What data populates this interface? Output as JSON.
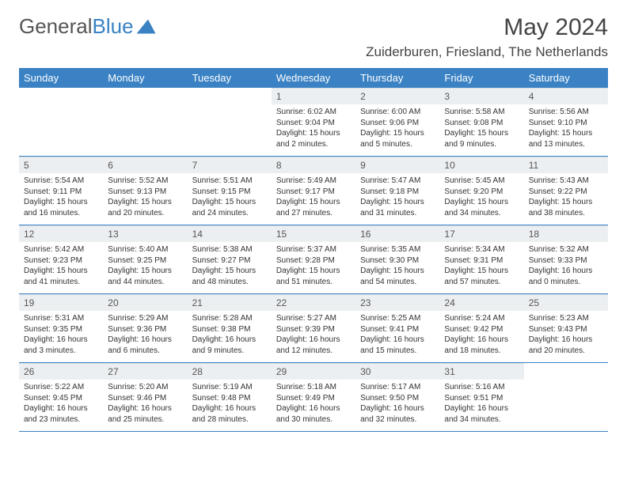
{
  "brand": {
    "part1": "General",
    "part2": "Blue"
  },
  "title": "May 2024",
  "location": "Zuiderburen, Friesland, The Netherlands",
  "dayNames": [
    "Sunday",
    "Monday",
    "Tuesday",
    "Wednesday",
    "Thursday",
    "Friday",
    "Saturday"
  ],
  "colors": {
    "accent": "#3a82c4",
    "headerText": "#ffffff",
    "dayNumBg": "#eceff1",
    "border": "#3a82c4",
    "text": "#333333"
  },
  "startOffset": 3,
  "days": [
    {
      "n": "1",
      "sr": "6:02 AM",
      "ss": "9:04 PM",
      "dl": "15 hours and 2 minutes."
    },
    {
      "n": "2",
      "sr": "6:00 AM",
      "ss": "9:06 PM",
      "dl": "15 hours and 5 minutes."
    },
    {
      "n": "3",
      "sr": "5:58 AM",
      "ss": "9:08 PM",
      "dl": "15 hours and 9 minutes."
    },
    {
      "n": "4",
      "sr": "5:56 AM",
      "ss": "9:10 PM",
      "dl": "15 hours and 13 minutes."
    },
    {
      "n": "5",
      "sr": "5:54 AM",
      "ss": "9:11 PM",
      "dl": "15 hours and 16 minutes."
    },
    {
      "n": "6",
      "sr": "5:52 AM",
      "ss": "9:13 PM",
      "dl": "15 hours and 20 minutes."
    },
    {
      "n": "7",
      "sr": "5:51 AM",
      "ss": "9:15 PM",
      "dl": "15 hours and 24 minutes."
    },
    {
      "n": "8",
      "sr": "5:49 AM",
      "ss": "9:17 PM",
      "dl": "15 hours and 27 minutes."
    },
    {
      "n": "9",
      "sr": "5:47 AM",
      "ss": "9:18 PM",
      "dl": "15 hours and 31 minutes."
    },
    {
      "n": "10",
      "sr": "5:45 AM",
      "ss": "9:20 PM",
      "dl": "15 hours and 34 minutes."
    },
    {
      "n": "11",
      "sr": "5:43 AM",
      "ss": "9:22 PM",
      "dl": "15 hours and 38 minutes."
    },
    {
      "n": "12",
      "sr": "5:42 AM",
      "ss": "9:23 PM",
      "dl": "15 hours and 41 minutes."
    },
    {
      "n": "13",
      "sr": "5:40 AM",
      "ss": "9:25 PM",
      "dl": "15 hours and 44 minutes."
    },
    {
      "n": "14",
      "sr": "5:38 AM",
      "ss": "9:27 PM",
      "dl": "15 hours and 48 minutes."
    },
    {
      "n": "15",
      "sr": "5:37 AM",
      "ss": "9:28 PM",
      "dl": "15 hours and 51 minutes."
    },
    {
      "n": "16",
      "sr": "5:35 AM",
      "ss": "9:30 PM",
      "dl": "15 hours and 54 minutes."
    },
    {
      "n": "17",
      "sr": "5:34 AM",
      "ss": "9:31 PM",
      "dl": "15 hours and 57 minutes."
    },
    {
      "n": "18",
      "sr": "5:32 AM",
      "ss": "9:33 PM",
      "dl": "16 hours and 0 minutes."
    },
    {
      "n": "19",
      "sr": "5:31 AM",
      "ss": "9:35 PM",
      "dl": "16 hours and 3 minutes."
    },
    {
      "n": "20",
      "sr": "5:29 AM",
      "ss": "9:36 PM",
      "dl": "16 hours and 6 minutes."
    },
    {
      "n": "21",
      "sr": "5:28 AM",
      "ss": "9:38 PM",
      "dl": "16 hours and 9 minutes."
    },
    {
      "n": "22",
      "sr": "5:27 AM",
      "ss": "9:39 PM",
      "dl": "16 hours and 12 minutes."
    },
    {
      "n": "23",
      "sr": "5:25 AM",
      "ss": "9:41 PM",
      "dl": "16 hours and 15 minutes."
    },
    {
      "n": "24",
      "sr": "5:24 AM",
      "ss": "9:42 PM",
      "dl": "16 hours and 18 minutes."
    },
    {
      "n": "25",
      "sr": "5:23 AM",
      "ss": "9:43 PM",
      "dl": "16 hours and 20 minutes."
    },
    {
      "n": "26",
      "sr": "5:22 AM",
      "ss": "9:45 PM",
      "dl": "16 hours and 23 minutes."
    },
    {
      "n": "27",
      "sr": "5:20 AM",
      "ss": "9:46 PM",
      "dl": "16 hours and 25 minutes."
    },
    {
      "n": "28",
      "sr": "5:19 AM",
      "ss": "9:48 PM",
      "dl": "16 hours and 28 minutes."
    },
    {
      "n": "29",
      "sr": "5:18 AM",
      "ss": "9:49 PM",
      "dl": "16 hours and 30 minutes."
    },
    {
      "n": "30",
      "sr": "5:17 AM",
      "ss": "9:50 PM",
      "dl": "16 hours and 32 minutes."
    },
    {
      "n": "31",
      "sr": "5:16 AM",
      "ss": "9:51 PM",
      "dl": "16 hours and 34 minutes."
    }
  ],
  "labels": {
    "sunrise": "Sunrise:",
    "sunset": "Sunset:",
    "daylight": "Daylight:"
  }
}
